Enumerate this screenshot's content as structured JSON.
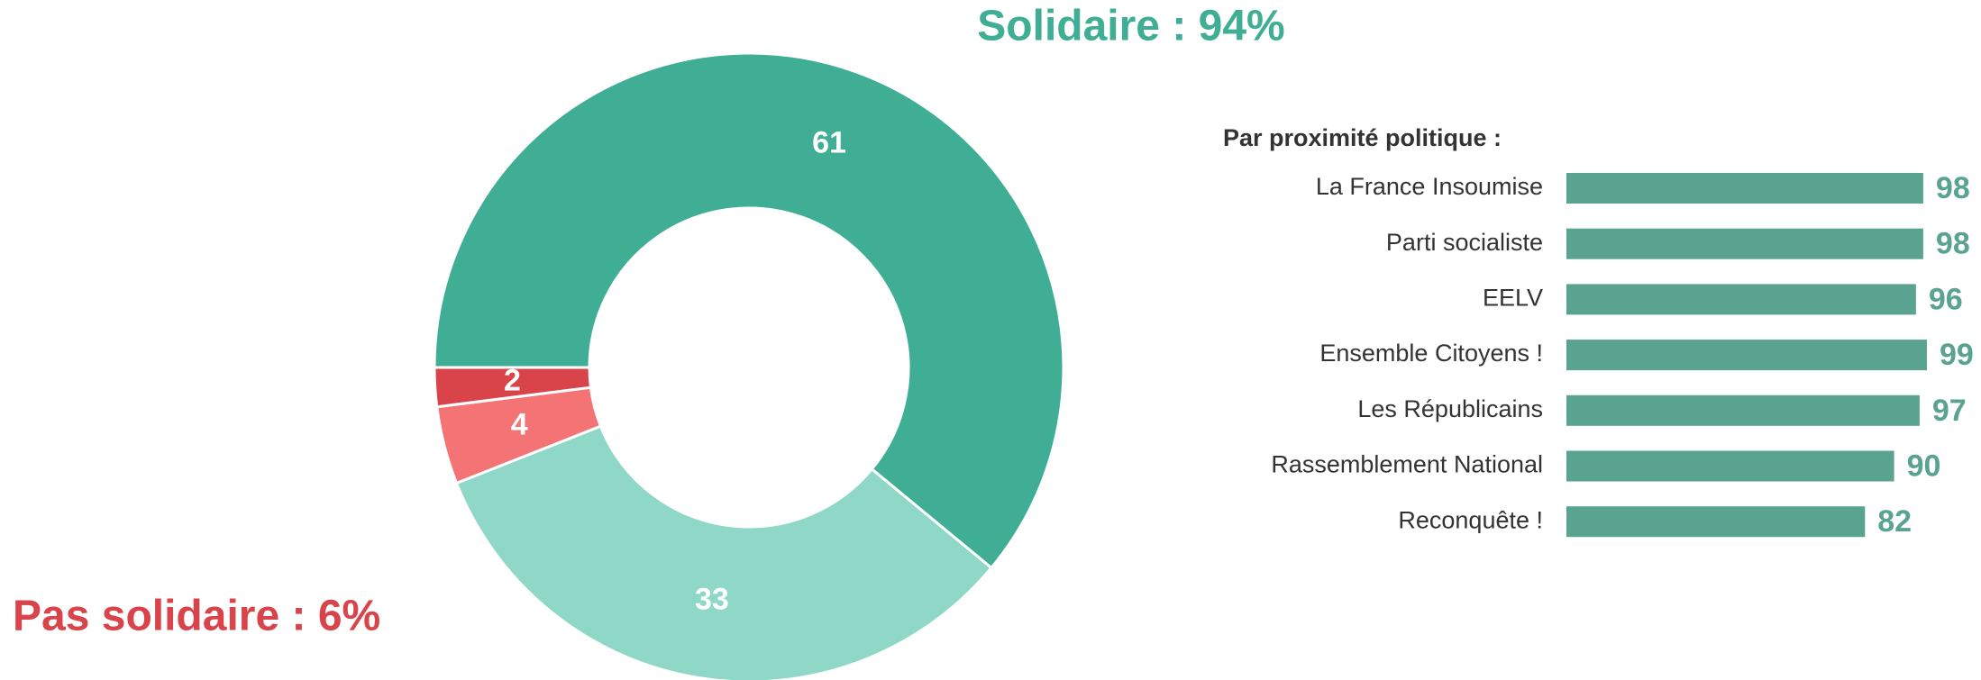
{
  "chart_data": [
    {
      "type": "donut",
      "annotations": [
        "Solidaire : 94%",
        "Pas solidaire : 6%"
      ],
      "annotation_colors": [
        "#3fae94",
        "#d9434a"
      ],
      "values": [
        61,
        33,
        4,
        2
      ],
      "colors": [
        "#3fae94",
        "#8fd8c8",
        "#f47476",
        "#d9434a"
      ]
    },
    {
      "type": "hbar",
      "title": "Par proximité politique :",
      "categories": [
        "La France Insoumise",
        "Parti socialiste",
        "EELV",
        "Ensemble Citoyens !",
        "Les Républicains",
        "Rassemblement National",
        "Reconquête !"
      ],
      "values": [
        98,
        98,
        96,
        99,
        97,
        90,
        82
      ],
      "color": "#5aa391",
      "xlim": [
        0,
        100
      ]
    }
  ]
}
